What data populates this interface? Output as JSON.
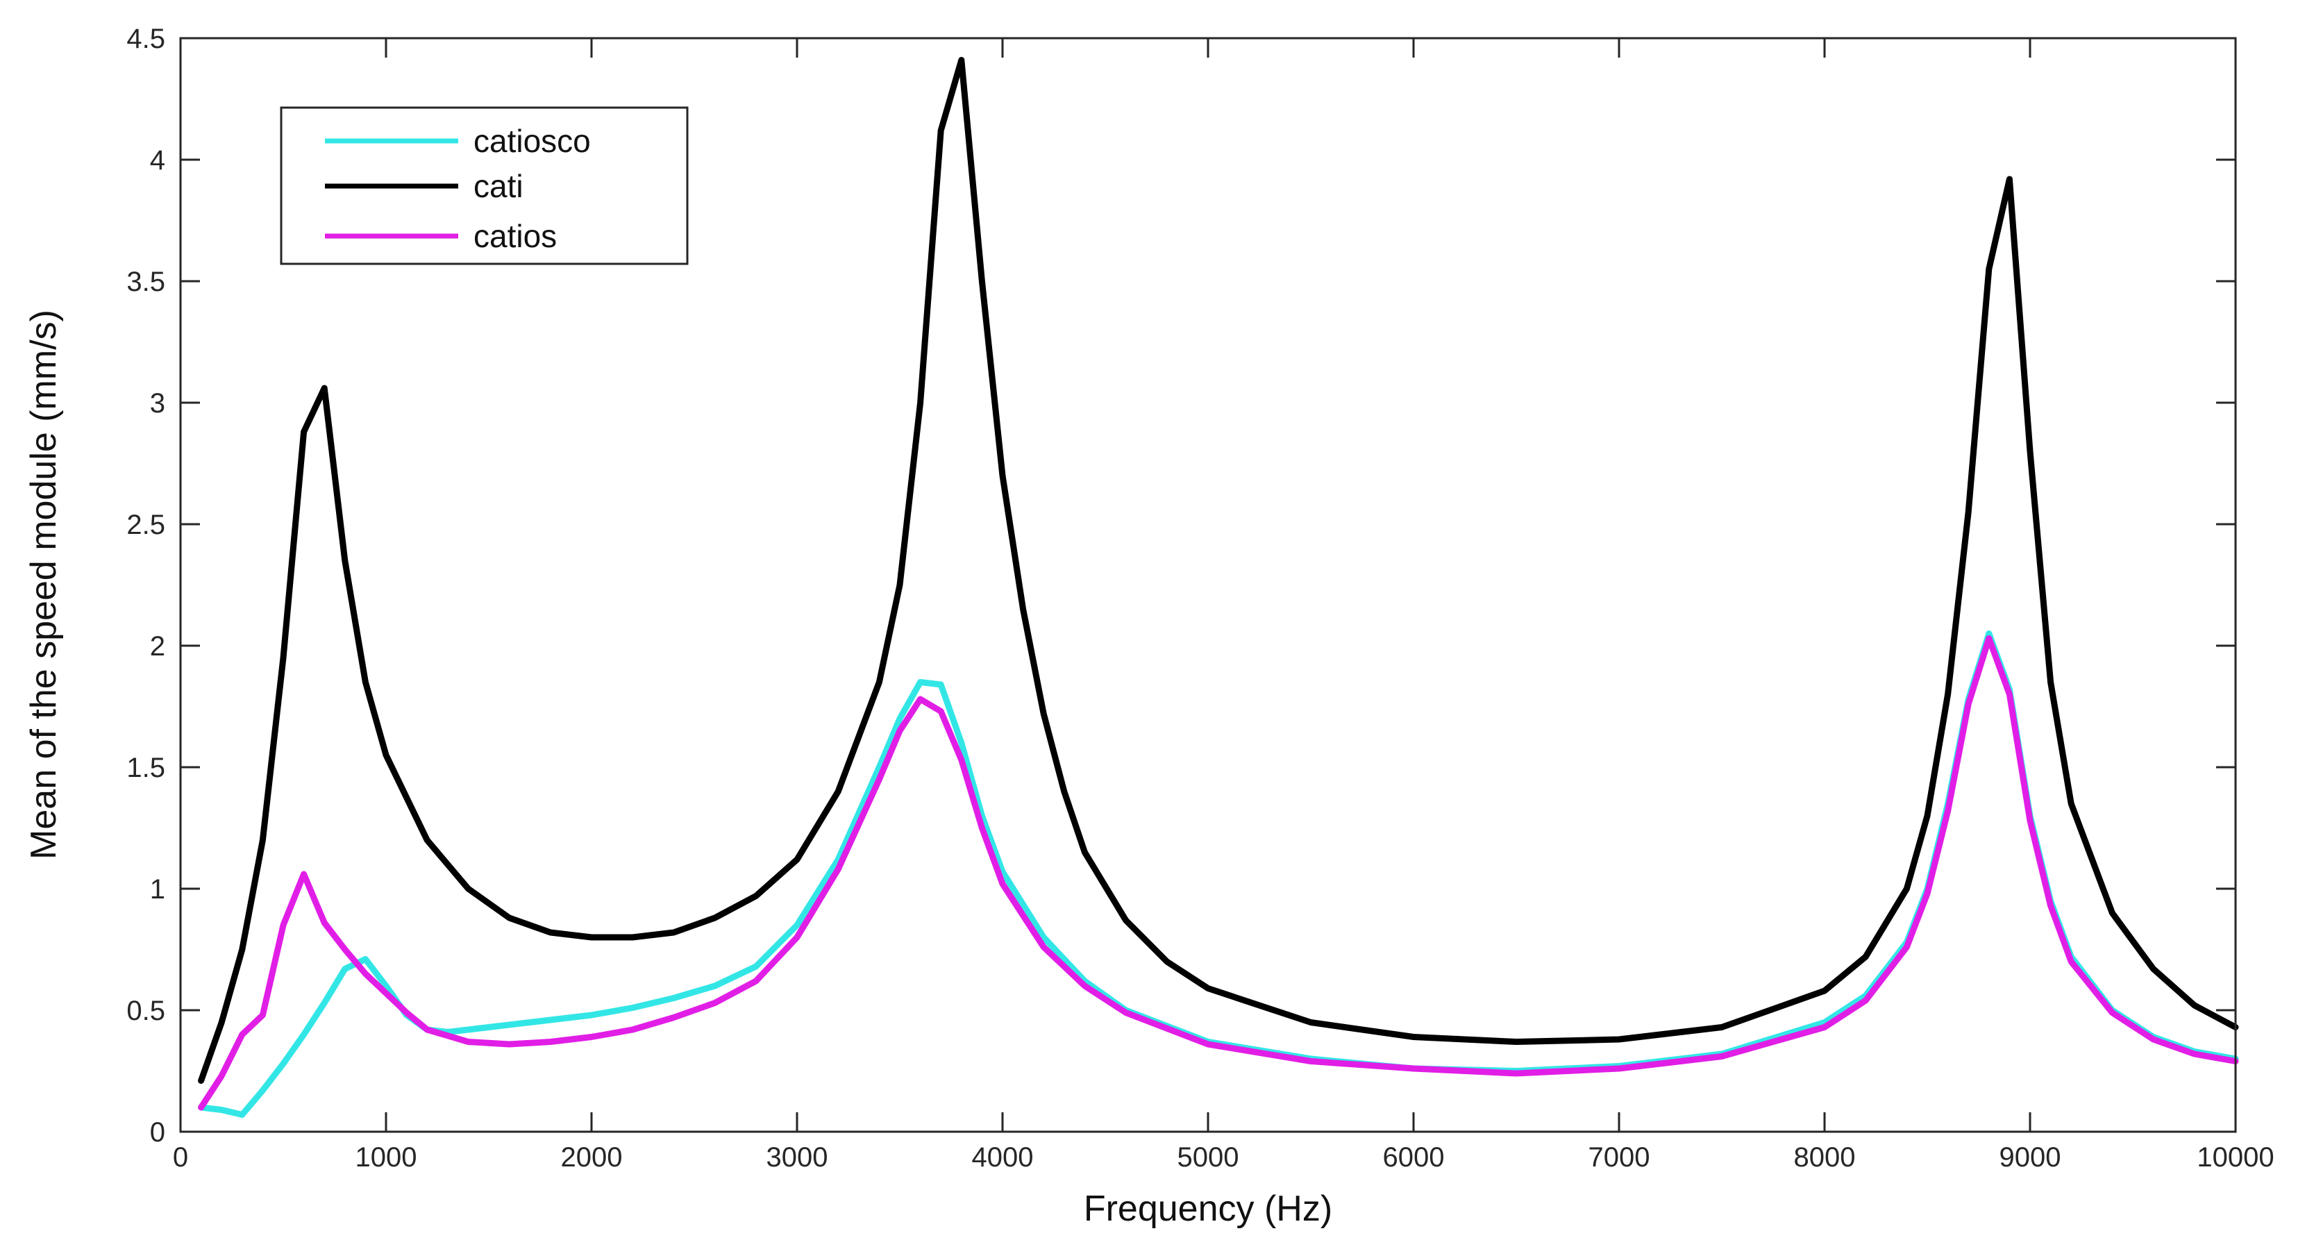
{
  "chart_data": {
    "type": "line",
    "title": "",
    "xlabel": "Frequency (Hz)",
    "ylabel": "Mean of the speed module (mm/s)",
    "xlim": [
      0,
      10000
    ],
    "ylim": [
      0,
      4.5
    ],
    "xticks": [
      0,
      1000,
      2000,
      3000,
      4000,
      5000,
      6000,
      7000,
      8000,
      9000,
      10000
    ],
    "yticks": [
      0,
      0.5,
      1,
      1.5,
      2,
      2.5,
      3,
      3.5,
      4,
      4.5
    ],
    "ytick_labels": [
      "0",
      "0.5",
      "1",
      "1.5",
      "2",
      "2.5",
      "3",
      "3.5",
      "4",
      "4.5"
    ],
    "grid": false,
    "legend_position": "top-left",
    "series": [
      {
        "name": "catiosco",
        "color": "#33e6e6",
        "x": [
          100,
          200,
          300,
          400,
          500,
          600,
          700,
          800,
          900,
          1000,
          1100,
          1200,
          1300,
          1500,
          1700,
          2000,
          2200,
          2400,
          2600,
          2800,
          3000,
          3200,
          3400,
          3500,
          3600,
          3700,
          3800,
          3900,
          4000,
          4200,
          4400,
          4600,
          5000,
          5500,
          6000,
          6500,
          7000,
          7500,
          8000,
          8200,
          8400,
          8500,
          8600,
          8700,
          8800,
          8900,
          9000,
          9100,
          9200,
          9400,
          9600,
          9800,
          10000
        ],
        "y": [
          0.1,
          0.09,
          0.07,
          0.17,
          0.28,
          0.4,
          0.53,
          0.67,
          0.71,
          0.6,
          0.48,
          0.42,
          0.41,
          0.43,
          0.45,
          0.48,
          0.51,
          0.55,
          0.6,
          0.68,
          0.85,
          1.12,
          1.5,
          1.7,
          1.85,
          1.84,
          1.6,
          1.3,
          1.07,
          0.8,
          0.62,
          0.5,
          0.37,
          0.3,
          0.26,
          0.25,
          0.27,
          0.32,
          0.45,
          0.56,
          0.78,
          1.0,
          1.35,
          1.78,
          2.05,
          1.82,
          1.3,
          0.95,
          0.72,
          0.5,
          0.39,
          0.33,
          0.3
        ]
      },
      {
        "name": "cati",
        "color": "#000000",
        "x": [
          100,
          200,
          300,
          400,
          500,
          600,
          700,
          800,
          900,
          1000,
          1200,
          1400,
          1600,
          1800,
          2000,
          2200,
          2400,
          2600,
          2800,
          3000,
          3200,
          3400,
          3500,
          3600,
          3700,
          3800,
          3900,
          4000,
          4100,
          4200,
          4300,
          4400,
          4600,
          4800,
          5000,
          5500,
          6000,
          6500,
          7000,
          7500,
          8000,
          8200,
          8400,
          8500,
          8600,
          8700,
          8800,
          8900,
          9000,
          9100,
          9200,
          9400,
          9600,
          9800,
          10000
        ],
        "y": [
          0.21,
          0.45,
          0.75,
          1.2,
          1.95,
          2.88,
          3.06,
          2.35,
          1.85,
          1.55,
          1.2,
          1.0,
          0.88,
          0.82,
          0.8,
          0.8,
          0.82,
          0.88,
          0.97,
          1.12,
          1.4,
          1.85,
          2.25,
          3.0,
          4.12,
          4.41,
          3.5,
          2.7,
          2.15,
          1.72,
          1.4,
          1.15,
          0.87,
          0.7,
          0.59,
          0.45,
          0.39,
          0.37,
          0.38,
          0.43,
          0.58,
          0.72,
          1.0,
          1.3,
          1.8,
          2.55,
          3.55,
          3.92,
          2.8,
          1.85,
          1.35,
          0.9,
          0.67,
          0.52,
          0.43
        ]
      },
      {
        "name": "catios",
        "color": "#e11ee6",
        "x": [
          100,
          200,
          300,
          400,
          500,
          600,
          700,
          800,
          900,
          1000,
          1100,
          1200,
          1400,
          1600,
          1800,
          2000,
          2200,
          2400,
          2600,
          2800,
          3000,
          3200,
          3400,
          3500,
          3600,
          3700,
          3800,
          3900,
          4000,
          4200,
          4400,
          4600,
          5000,
          5500,
          6000,
          6500,
          7000,
          7500,
          8000,
          8200,
          8400,
          8500,
          8600,
          8700,
          8800,
          8900,
          9000,
          9100,
          9200,
          9400,
          9600,
          9800,
          10000
        ],
        "y": [
          0.1,
          0.23,
          0.4,
          0.48,
          0.85,
          1.06,
          0.86,
          0.75,
          0.65,
          0.57,
          0.49,
          0.42,
          0.37,
          0.36,
          0.37,
          0.39,
          0.42,
          0.47,
          0.53,
          0.62,
          0.8,
          1.08,
          1.45,
          1.65,
          1.78,
          1.73,
          1.53,
          1.25,
          1.02,
          0.76,
          0.6,
          0.49,
          0.36,
          0.29,
          0.26,
          0.24,
          0.26,
          0.31,
          0.43,
          0.54,
          0.76,
          0.98,
          1.32,
          1.76,
          2.03,
          1.8,
          1.28,
          0.93,
          0.7,
          0.49,
          0.38,
          0.32,
          0.29
        ]
      }
    ]
  }
}
